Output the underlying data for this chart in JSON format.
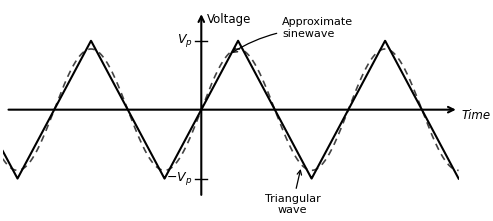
{
  "title": "",
  "xlabel": "Time",
  "ylabel": "Voltage",
  "vp_label": "$V_p$",
  "neg_vp_label": "$-V_p$",
  "annotation_sine": "Approximate\nsinewave",
  "annotation_tri": "Triangular\nwave",
  "background_color": "#ffffff",
  "tri_color": "#000000",
  "sine_color": "#444444",
  "period": 1.0,
  "amplitude": 1.0,
  "x_lim": [
    -1.35,
    1.75
  ],
  "y_lim": [
    -1.45,
    1.55
  ]
}
